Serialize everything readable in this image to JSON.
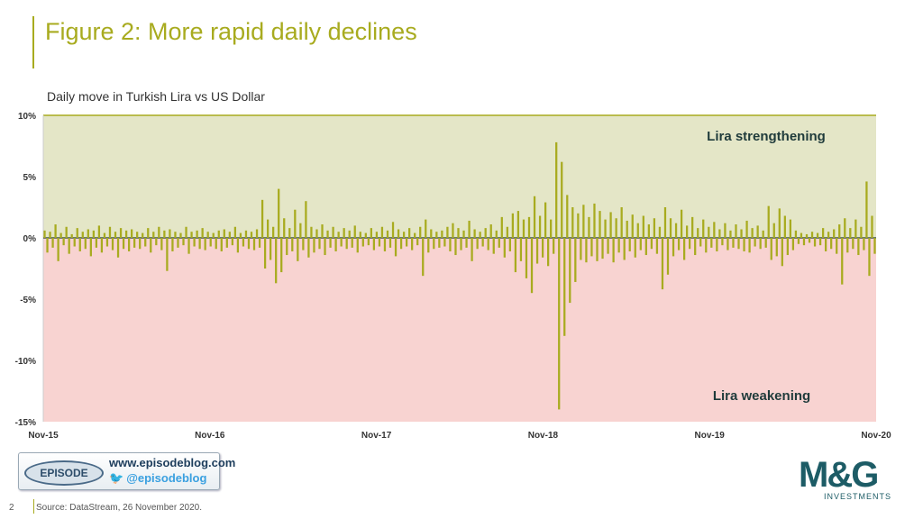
{
  "title": "Figure 2: More rapid daily declines",
  "subtitle": "Daily move in Turkish Lira vs US Dollar",
  "source": "Source: DataStream, 26 November 2020.",
  "page_number": "2",
  "logo": {
    "badge": "EPISODE",
    "url": "www.episodeblog.com",
    "twitter": "@episodeblog",
    "twitter_icon": "twitter-bird-icon"
  },
  "brand": {
    "name": "M&G",
    "sub": "INVESTMENTS"
  },
  "colors": {
    "series": "#a8ab1f",
    "positive_bg": "#e4e6c7",
    "negative_bg": "#f8d3d1",
    "title": "#a8ab1f",
    "brand": "#1d5c66"
  },
  "chart_data": {
    "type": "bar",
    "title": "Daily move in Turkish Lira vs US Dollar",
    "xlabel": "",
    "ylabel": "",
    "ylim": [
      -15,
      10
    ],
    "yticks": [
      "10%",
      "5%",
      "0%",
      "-5%",
      "-10%",
      "-15%"
    ],
    "ytick_values": [
      10,
      5,
      0,
      -5,
      -10,
      -15
    ],
    "xticks": [
      "Nov-15",
      "Nov-16",
      "Nov-17",
      "Nov-18",
      "Nov-19",
      "Nov-20"
    ],
    "region_labels": {
      "positive": "Lira strengthening",
      "negative": "Lira weakening"
    },
    "series": [
      {
        "values": [
          0.6,
          -1.2,
          0.5,
          -0.8,
          1.1,
          -1.9,
          0.4,
          -0.6,
          0.9,
          -1.3,
          0.3,
          -0.7,
          0.8,
          -1.1,
          0.5,
          -0.9,
          0.7,
          -1.5,
          0.6,
          -0.8,
          1.0,
          -1.2,
          0.4,
          -0.7,
          0.9,
          -1.0,
          0.5,
          -1.6,
          0.8,
          -0.9,
          0.6,
          -1.1,
          0.7,
          -0.8,
          0.5,
          -0.9,
          0.4,
          -0.7,
          0.8,
          -1.2,
          0.5,
          -0.6,
          0.9,
          -1.0,
          0.6,
          -2.7,
          0.7,
          -1.1,
          0.5,
          -0.8,
          0.4,
          -0.6,
          0.9,
          -1.3,
          0.5,
          -0.7,
          0.6,
          -0.9,
          0.8,
          -1.0,
          0.5,
          -0.7,
          0.4,
          -0.9,
          0.6,
          -1.1,
          0.7,
          -0.8,
          0.5,
          -0.6,
          0.9,
          -1.2,
          0.4,
          -0.7,
          0.6,
          -0.9,
          0.5,
          -1.0,
          0.7,
          -0.8,
          3.1,
          -2.5,
          1.5,
          -1.8,
          0.9,
          -3.7,
          4.0,
          -2.8,
          1.6,
          -1.4,
          0.8,
          -1.1,
          2.3,
          -1.9,
          1.2,
          -1.0,
          3.0,
          -1.6,
          0.9,
          -1.2,
          0.7,
          -0.9,
          1.1,
          -1.4,
          0.6,
          -0.8,
          0.9,
          -1.1,
          0.5,
          -0.7,
          0.8,
          -0.9,
          0.6,
          -0.8,
          1.0,
          -1.2,
          0.5,
          -0.7,
          0.4,
          -0.6,
          0.8,
          -1.0,
          0.5,
          -0.7,
          0.9,
          -1.1,
          0.6,
          -0.8,
          1.3,
          -1.5,
          0.7,
          -0.9,
          0.5,
          -0.7,
          0.8,
          -1.0,
          0.4,
          -0.6,
          0.9,
          -3.1,
          1.5,
          -1.2,
          0.7,
          -0.9,
          0.5,
          -0.8,
          0.6,
          -0.7,
          0.9,
          -1.1,
          1.2,
          -1.4,
          0.8,
          -1.0,
          0.6,
          -0.8,
          1.4,
          -1.9,
          0.7,
          -0.9,
          0.5,
          -0.7,
          0.8,
          -1.0,
          1.1,
          -1.3,
          0.6,
          -0.8,
          1.7,
          -1.6,
          0.9,
          -1.1,
          2.0,
          -2.8,
          2.2,
          -1.9,
          1.5,
          -3.3,
          1.7,
          -4.5,
          3.4,
          -2.1,
          1.8,
          -1.6,
          2.9,
          -2.3,
          1.5,
          -1.3,
          7.8,
          -14.0,
          6.2,
          -8.0,
          3.5,
          -5.3,
          2.5,
          -3.6,
          2.0,
          -1.8,
          2.7,
          -2.0,
          1.7,
          -1.5,
          2.8,
          -1.9,
          2.2,
          -1.7,
          1.5,
          -1.3,
          2.1,
          -2.0,
          1.6,
          -1.2,
          2.5,
          -1.8,
          1.4,
          -1.1,
          1.9,
          -1.6,
          1.2,
          -1.0,
          1.8,
          -1.4,
          1.1,
          -0.9,
          1.6,
          -1.3,
          0.9,
          -4.2,
          2.5,
          -3.0,
          1.6,
          -1.5,
          1.2,
          -1.0,
          2.3,
          -1.8,
          1.0,
          -0.9,
          1.7,
          -1.4,
          0.8,
          -0.7,
          1.5,
          -1.2,
          0.9,
          -0.8,
          1.3,
          -1.1,
          0.7,
          -0.6,
          1.2,
          -1.0,
          0.6,
          -0.8,
          1.1,
          -0.9,
          0.7,
          -1.1,
          1.4,
          -1.2,
          0.8,
          -0.7,
          1.0,
          -0.9,
          0.6,
          -0.8,
          2.6,
          -1.8,
          1.2,
          -1.5,
          2.4,
          -2.3,
          1.8,
          -1.4,
          1.5,
          -1.0,
          0.6,
          -0.5,
          0.4,
          -0.6,
          0.3,
          -0.4,
          0.5,
          -0.7,
          0.4,
          -0.6,
          0.8,
          -1.1,
          0.5,
          -0.9,
          0.7,
          -1.3,
          1.1,
          -3.8,
          1.6,
          -1.2,
          0.8,
          -0.9,
          1.5,
          -1.4,
          0.9,
          -1.0,
          4.6,
          -3.1,
          1.8,
          -1.3
        ]
      }
    ]
  }
}
